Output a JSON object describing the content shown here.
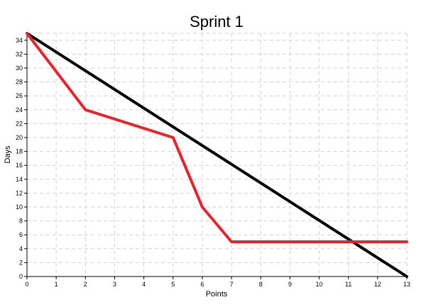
{
  "chart_data": {
    "type": "line",
    "title": "Sprint 1",
    "xlabel": "Points",
    "ylabel": "Days",
    "xlim": [
      0,
      13
    ],
    "ylim": [
      0,
      35
    ],
    "x_ticks": [
      0,
      1,
      2,
      3,
      4,
      5,
      6,
      7,
      8,
      9,
      10,
      11,
      12,
      13
    ],
    "y_ticks": [
      0,
      2,
      4,
      6,
      8,
      10,
      12,
      14,
      16,
      18,
      20,
      22,
      24,
      26,
      28,
      30,
      32,
      34
    ],
    "grid": true,
    "series": [
      {
        "color": "#000000",
        "x": [
          0,
          13
        ],
        "y": [
          35,
          0
        ]
      },
      {
        "color": "#e8232a",
        "x": [
          0,
          2,
          5,
          6,
          7,
          13
        ],
        "y": [
          35,
          24,
          20,
          10,
          5,
          5
        ]
      }
    ]
  }
}
